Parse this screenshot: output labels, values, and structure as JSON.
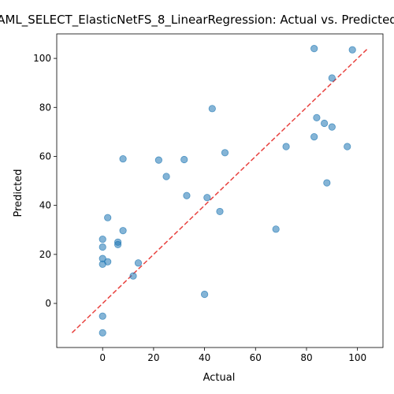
{
  "chart_data": {
    "type": "scatter",
    "title": "AML_SELECT_ElasticNetFS_8_LinearRegression: Actual vs. Predicted",
    "xlabel": "Actual",
    "ylabel": "Predicted",
    "xlim": [
      -18,
      110
    ],
    "ylim": [
      -18,
      110
    ],
    "xticks": [
      0,
      20,
      40,
      60,
      80,
      100
    ],
    "yticks": [
      0,
      20,
      40,
      60,
      80,
      100
    ],
    "grid": false,
    "points": {
      "color": "#1f77b4",
      "x": [
        83,
        98,
        90,
        43,
        84,
        87,
        90,
        72,
        83,
        96,
        48,
        8,
        22,
        32,
        25,
        33,
        41,
        88,
        46,
        2,
        8,
        68,
        0,
        6,
        6,
        0,
        0,
        2,
        0,
        14,
        12,
        40,
        0,
        0
      ],
      "y": [
        104,
        103.5,
        92,
        79.5,
        75.8,
        73.5,
        72,
        64,
        68,
        64,
        61.5,
        59,
        58.5,
        58.7,
        51.8,
        44,
        43.2,
        49.2,
        37.5,
        35,
        29.7,
        30.3,
        26.2,
        25,
        24,
        23,
        18.3,
        17,
        16,
        16.5,
        11.2,
        3.7,
        -5.2,
        -12
      ]
    },
    "reference_line": {
      "color": "#e8423f",
      "style": "dashed",
      "x": [
        -12,
        104
      ],
      "y": [
        -12,
        104
      ]
    }
  }
}
